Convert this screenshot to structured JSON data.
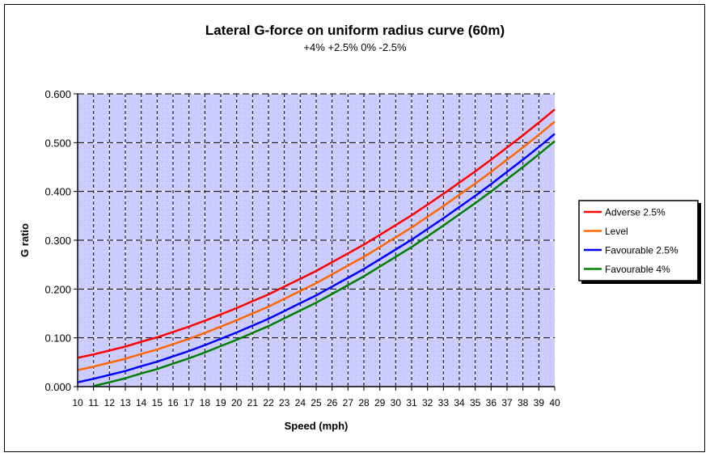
{
  "chart_data": {
    "type": "line",
    "title": "Lateral G-force on uniform radius curve (60m)",
    "subtitle": "+4% +2.5% 0% -2.5%",
    "xlabel": "Speed (mph)",
    "ylabel": "G ratio",
    "ylim": [
      0,
      0.6
    ],
    "yticks": [
      "0.000",
      "0.100",
      "0.200",
      "0.300",
      "0.400",
      "0.500",
      "0.600"
    ],
    "grid": true,
    "legend_position": "right",
    "plot_background": "#CCCCFF",
    "categories": [
      "10",
      "11",
      "12",
      "13",
      "14",
      "15",
      "16",
      "17",
      "18",
      "19",
      "20",
      "21",
      "22",
      "23",
      "24",
      "25",
      "26",
      "27",
      "28",
      "29",
      "30",
      "31",
      "32",
      "33",
      "34",
      "35",
      "36",
      "37",
      "38",
      "39",
      "40"
    ],
    "series": [
      {
        "name": "Adverse 2.5%",
        "color": "#FF0000",
        "values": [
          0.059,
          0.066,
          0.074,
          0.082,
          0.092,
          0.101,
          0.112,
          0.123,
          0.135,
          0.148,
          0.161,
          0.175,
          0.189,
          0.205,
          0.221,
          0.237,
          0.255,
          0.273,
          0.291,
          0.311,
          0.331,
          0.351,
          0.373,
          0.395,
          0.418,
          0.441,
          0.465,
          0.49,
          0.515,
          0.541,
          0.568
        ]
      },
      {
        "name": "Level",
        "color": "#FF6600",
        "values": [
          0.034,
          0.041,
          0.049,
          0.057,
          0.067,
          0.076,
          0.087,
          0.098,
          0.11,
          0.123,
          0.136,
          0.15,
          0.164,
          0.18,
          0.196,
          0.212,
          0.23,
          0.248,
          0.266,
          0.286,
          0.306,
          0.326,
          0.348,
          0.37,
          0.393,
          0.416,
          0.44,
          0.465,
          0.49,
          0.516,
          0.543
        ]
      },
      {
        "name": "Favourable 2.5%",
        "color": "#0000FF",
        "values": [
          0.009,
          0.016,
          0.024,
          0.032,
          0.042,
          0.051,
          0.062,
          0.073,
          0.085,
          0.098,
          0.111,
          0.125,
          0.139,
          0.155,
          0.171,
          0.187,
          0.205,
          0.223,
          0.241,
          0.261,
          0.281,
          0.301,
          0.323,
          0.345,
          0.368,
          0.391,
          0.415,
          0.44,
          0.465,
          0.491,
          0.518
        ]
      },
      {
        "name": "Favourable 4%",
        "color": "#008000",
        "values": [
          null,
          0.001,
          0.009,
          0.017,
          0.027,
          0.036,
          0.047,
          0.058,
          0.07,
          0.083,
          0.096,
          0.11,
          0.124,
          0.14,
          0.156,
          0.172,
          0.19,
          0.208,
          0.226,
          0.246,
          0.266,
          0.286,
          0.308,
          0.33,
          0.353,
          0.376,
          0.4,
          0.425,
          0.45,
          0.476,
          0.503
        ]
      }
    ]
  }
}
